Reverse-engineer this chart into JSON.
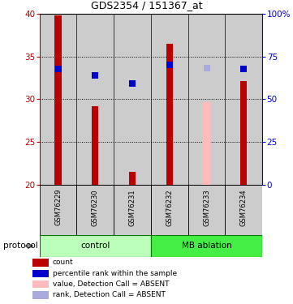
{
  "title": "GDS2354 / 151367_at",
  "samples": [
    "GSM76229",
    "GSM76230",
    "GSM76231",
    "GSM76232",
    "GSM76233",
    "GSM76234"
  ],
  "bar_values": [
    39.8,
    29.2,
    21.5,
    36.5,
    null,
    32.1
  ],
  "bar_absent_values": [
    null,
    null,
    null,
    null,
    29.7,
    null
  ],
  "rank_values": [
    33.5,
    32.8,
    31.8,
    34.0,
    null,
    33.5
  ],
  "rank_absent_values": [
    null,
    null,
    null,
    null,
    33.6,
    null
  ],
  "ylim": [
    20,
    40
  ],
  "y2lim": [
    0,
    100
  ],
  "yticks": [
    20,
    25,
    30,
    35,
    40
  ],
  "y2ticks": [
    0,
    25,
    50,
    75,
    100
  ],
  "y2ticklabels": [
    "0",
    "25",
    "50",
    "75",
    "100%"
  ],
  "bar_color": "#bb0000",
  "bar_absent_color": "#ffbbbb",
  "rank_color": "#0000cc",
  "rank_absent_color": "#aaaadd",
  "ctrl_color": "#bbffbb",
  "mb_color": "#44ee44",
  "cell_color": "#cccccc",
  "grid_color_dotted": "#000000",
  "protocol_label": "protocol",
  "legend_items": [
    {
      "label": "count",
      "color": "#bb0000"
    },
    {
      "label": "percentile rank within the sample",
      "color": "#0000cc"
    },
    {
      "label": "value, Detection Call = ABSENT",
      "color": "#ffbbbb"
    },
    {
      "label": "rank, Detection Call = ABSENT",
      "color": "#aaaadd"
    }
  ]
}
